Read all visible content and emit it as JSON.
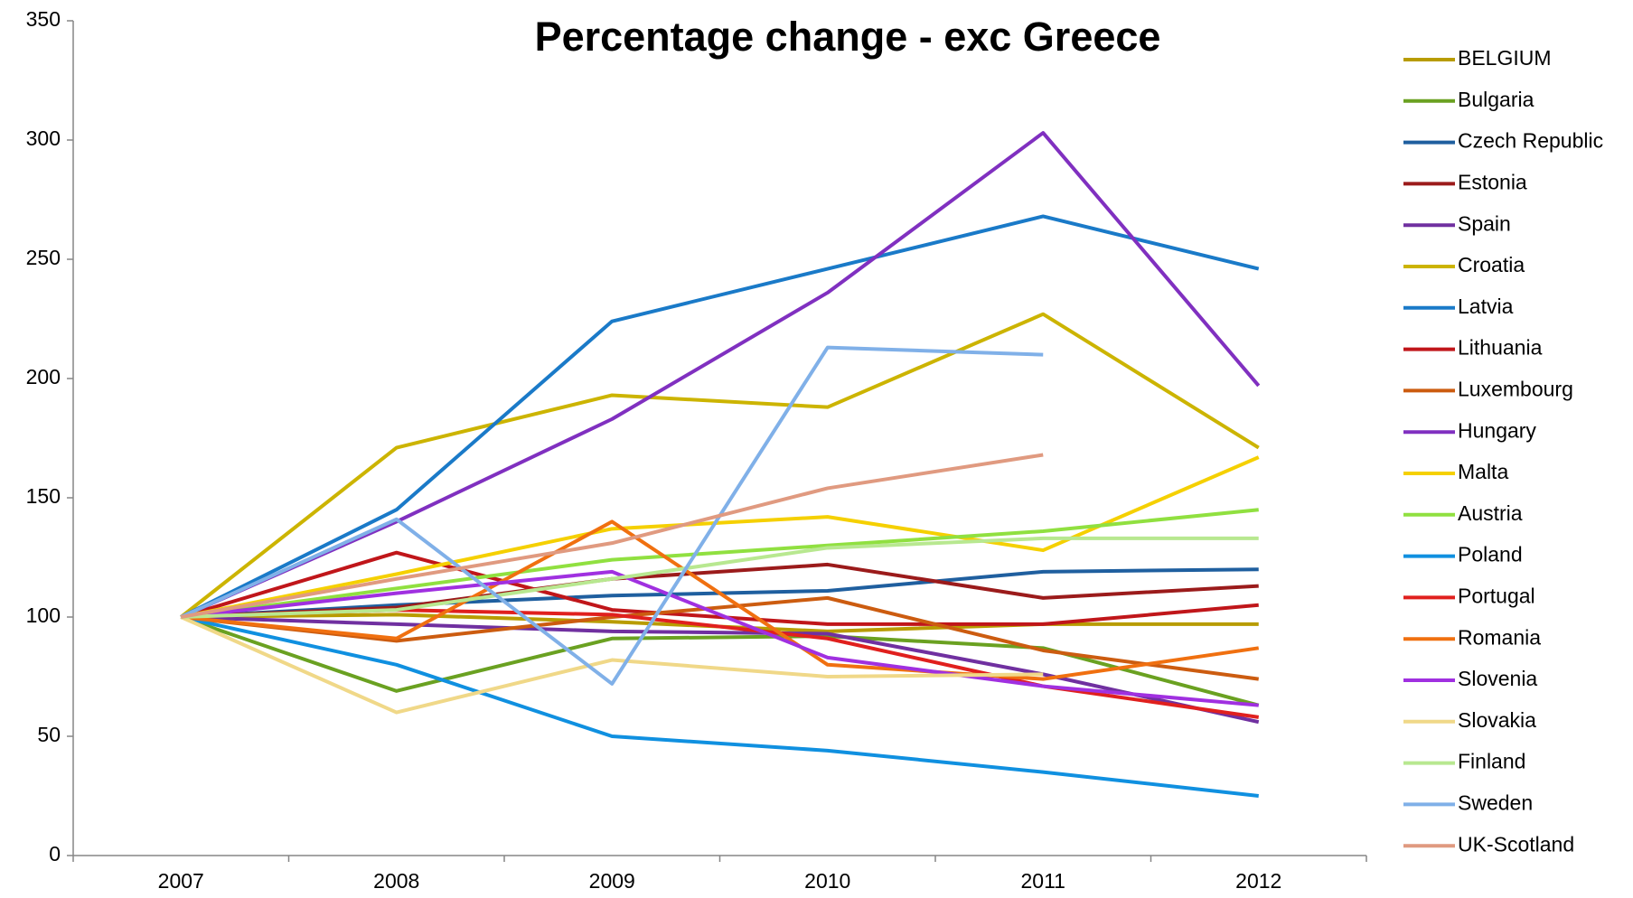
{
  "chart_data": {
    "type": "line",
    "title": "Percentage change - exc Greece",
    "categories": [
      "2007",
      "2008",
      "2009",
      "2010",
      "2011",
      "2012"
    ],
    "ylim": [
      0,
      350
    ],
    "yticks": [
      0,
      50,
      100,
      150,
      200,
      250,
      300,
      350
    ],
    "grid": false,
    "legend": "right",
    "series": [
      {
        "name": "BELGIUM",
        "color": "#b89c00",
        "values": [
          100,
          101,
          98,
          94,
          97,
          97
        ]
      },
      {
        "name": "Bulgaria",
        "color": "#6aa121",
        "values": [
          100,
          69,
          91,
          92,
          87,
          63
        ]
      },
      {
        "name": "Czech Republic",
        "color": "#1f5f9f",
        "values": [
          100,
          105,
          109,
          111,
          119,
          120
        ]
      },
      {
        "name": "Estonia",
        "color": "#9b1b1b",
        "values": [
          100,
          104,
          116,
          122,
          108,
          113
        ]
      },
      {
        "name": "Spain",
        "color": "#7030a0",
        "values": [
          100,
          97,
          94,
          93,
          76,
          56
        ]
      },
      {
        "name": "Croatia",
        "color": "#ccb400",
        "values": [
          100,
          171,
          193,
          188,
          227,
          171
        ]
      },
      {
        "name": "Latvia",
        "color": "#1a7ac8",
        "values": [
          100,
          145,
          224,
          246,
          268,
          246
        ]
      },
      {
        "name": "Lithuania",
        "color": "#c0161a",
        "values": [
          100,
          127,
          103,
          97,
          97,
          105
        ]
      },
      {
        "name": "Luxembourg",
        "color": "#cc5c10",
        "values": [
          100,
          90,
          100,
          108,
          86,
          74
        ]
      },
      {
        "name": "Hungary",
        "color": "#8030c0",
        "values": [
          100,
          140,
          183,
          236,
          303,
          197
        ]
      },
      {
        "name": "Malta",
        "color": "#f5d000",
        "values": [
          100,
          118,
          137,
          142,
          128,
          167
        ]
      },
      {
        "name": "Austria",
        "color": "#90e040",
        "values": [
          100,
          112,
          124,
          130,
          136,
          145
        ]
      },
      {
        "name": "Poland",
        "color": "#1090e0",
        "values": [
          100,
          80,
          50,
          44,
          35,
          25
        ]
      },
      {
        "name": "Portugal",
        "color": "#e0201e",
        "values": [
          100,
          103,
          101,
          91,
          71,
          58
        ]
      },
      {
        "name": "Romania",
        "color": "#f07010",
        "values": [
          100,
          91,
          140,
          80,
          74,
          87
        ]
      },
      {
        "name": "Slovenia",
        "color": "#a030e0",
        "values": [
          100,
          110,
          119,
          83,
          71,
          63
        ]
      },
      {
        "name": "Slovakia",
        "color": "#f0d888",
        "values": [
          100,
          60,
          82,
          75,
          76,
          null
        ]
      },
      {
        "name": "Finland",
        "color": "#b8e890",
        "values": [
          100,
          103,
          116,
          129,
          133,
          133
        ]
      },
      {
        "name": "Sweden",
        "color": "#80b0e8",
        "values": [
          100,
          141,
          72,
          213,
          210,
          null
        ]
      },
      {
        "name": "UK-Scotland",
        "color": "#e09a80",
        "values": [
          100,
          116,
          131,
          154,
          168,
          null
        ]
      }
    ]
  }
}
